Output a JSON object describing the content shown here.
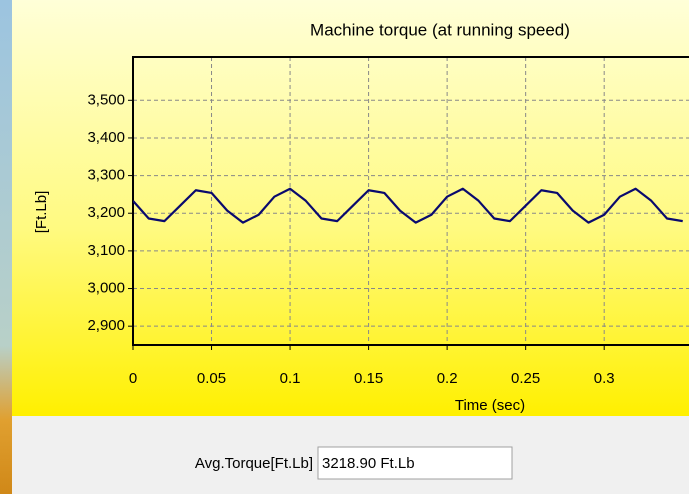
{
  "chart_data": {
    "type": "line",
    "title": "Machine torque (at running speed)",
    "x_label": "Time (sec)",
    "y_label": "[Ft.Lb]",
    "x": [
      0,
      0.01,
      0.02,
      0.03,
      0.04,
      0.05,
      0.06,
      0.07,
      0.08,
      0.09,
      0.1,
      0.11,
      0.12,
      0.13,
      0.14,
      0.15,
      0.16,
      0.17,
      0.18,
      0.19,
      0.2,
      0.21,
      0.22,
      0.23,
      0.24,
      0.25,
      0.26,
      0.27,
      0.28,
      0.29,
      0.3,
      0.31,
      0.32,
      0.33,
      0.34,
      0.35
    ],
    "series": [
      {
        "color": "#0a0a6e",
        "values": [
          3233,
          3186,
          3179,
          3220,
          3261,
          3254,
          3207,
          3175,
          3196,
          3244,
          3265,
          3233,
          3186,
          3179,
          3220,
          3261,
          3254,
          3207,
          3175,
          3196,
          3244,
          3265,
          3233,
          3186,
          3179,
          3220,
          3261,
          3254,
          3207,
          3175,
          3196,
          3244,
          3265,
          3233,
          3186,
          3179
        ]
      }
    ],
    "xlim": [
      0,
      0.354
    ],
    "ylim": [
      2850,
      3615
    ],
    "xticks": [
      0,
      0.05,
      0.1,
      0.15,
      0.2,
      0.25,
      0.3
    ],
    "yticks": [
      {
        "value": 2900,
        "label": "2,900"
      },
      {
        "value": 3000,
        "label": "3,000"
      },
      {
        "value": 3100,
        "label": "3,100"
      },
      {
        "value": 3200,
        "label": "3,200"
      },
      {
        "value": 3300,
        "label": "3,300"
      },
      {
        "value": 3400,
        "label": "3,400"
      },
      {
        "value": 3500,
        "label": "3,500"
      }
    ],
    "grid": true
  },
  "avg_torque": {
    "label": "Avg.Torque[Ft.Lb]",
    "value": "3218.90 Ft.Lb"
  }
}
